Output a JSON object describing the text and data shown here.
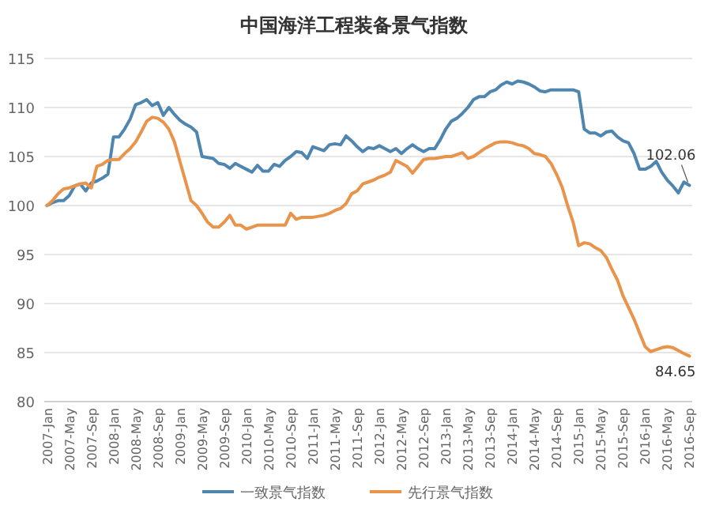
{
  "chart_data": {
    "type": "line",
    "title": "中国海洋工程装备景气指数",
    "categories": [
      "2007-Jan",
      null,
      null,
      null,
      "2007-May",
      null,
      null,
      null,
      "2007-Sep",
      null,
      null,
      null,
      "2008-Jan",
      null,
      null,
      null,
      "2008-May",
      null,
      null,
      null,
      "2008-Sep",
      null,
      null,
      null,
      "2009-Jan",
      null,
      null,
      null,
      "2009-May",
      null,
      null,
      null,
      "2009-Sep",
      null,
      null,
      null,
      "2010-Jan",
      null,
      null,
      null,
      "2010-May",
      null,
      null,
      null,
      "2010-Sep",
      null,
      null,
      null,
      "2011-Jan",
      null,
      null,
      null,
      "2011-May",
      null,
      null,
      null,
      "2011-Sep",
      null,
      null,
      null,
      "2012-Jan",
      null,
      null,
      null,
      "2012-May",
      null,
      null,
      null,
      "2012-Sep",
      null,
      null,
      null,
      "2013-Jan",
      null,
      null,
      null,
      "2013-May",
      null,
      null,
      null,
      "2013-Sep",
      null,
      null,
      null,
      "2014-Jan",
      null,
      null,
      null,
      "2014-May",
      null,
      null,
      null,
      "2014-Sep",
      null,
      null,
      null,
      "2015-Jan",
      null,
      null,
      null,
      "2015-May",
      null,
      null,
      null,
      "2015-Sep",
      null,
      null,
      null,
      "2016-Jan",
      null,
      null,
      null,
      "2016-May",
      null,
      null,
      null,
      "2016-Sep"
    ],
    "series": [
      {
        "name": "一致景气指数",
        "color": "#4f86b0",
        "values": [
          100,
          100.3,
          100.5,
          100.5,
          101,
          102,
          102.2,
          101.5,
          102.3,
          102.5,
          102.8,
          103.2,
          107,
          107,
          107.8,
          108.8,
          110.3,
          110.5,
          110.8,
          110.2,
          110.5,
          109.2,
          110,
          109.3,
          108.7,
          108.3,
          108,
          107.5,
          105,
          104.9,
          104.8,
          104.3,
          104.2,
          103.8,
          104.3,
          104,
          103.7,
          103.4,
          104.1,
          103.5,
          103.5,
          104.2,
          104,
          104.6,
          105,
          105.5,
          105.4,
          104.8,
          106,
          105.8,
          105.6,
          106.2,
          106.3,
          106.2,
          107.1,
          106.6,
          106,
          105.5,
          105.9,
          105.8,
          106.1,
          105.8,
          105.5,
          105.8,
          105.3,
          105.8,
          106.2,
          105.8,
          105.5,
          105.8,
          105.8,
          106.7,
          107.8,
          108.6,
          108.9,
          109.4,
          110,
          110.8,
          111.1,
          111.1,
          111.6,
          111.8,
          112.3,
          112.6,
          112.4,
          112.7,
          112.6,
          112.4,
          112.1,
          111.7,
          111.6,
          111.8,
          111.8,
          111.8,
          111.8,
          111.8,
          111.6,
          107.8,
          107.4,
          107.4,
          107.1,
          107.5,
          107.6,
          107,
          106.6,
          106.4,
          105.3,
          103.7,
          103.7,
          104,
          104.5,
          103.4,
          102.6,
          102,
          101.3,
          102.4,
          102.06
        ],
        "value_labels": [
          null,
          null,
          null,
          null,
          null,
          null,
          null,
          null,
          null,
          null,
          null,
          null,
          null,
          null,
          null,
          null,
          null,
          null,
          null,
          null,
          null,
          null,
          null,
          null,
          null,
          null,
          null,
          null,
          null,
          null,
          null,
          null,
          null,
          null,
          null,
          null,
          null,
          null,
          null,
          null,
          null,
          null,
          null,
          null,
          null,
          null,
          null,
          null,
          null,
          null,
          null,
          null,
          null,
          null,
          null,
          null,
          null,
          null,
          null,
          null,
          null,
          null,
          null,
          null,
          null,
          null,
          null,
          null,
          null,
          null,
          null,
          null,
          null,
          null,
          null,
          null,
          null,
          null,
          null,
          null,
          null,
          null,
          null,
          null,
          null,
          null,
          null,
          null,
          null,
          null,
          null,
          null,
          null,
          null,
          null,
          null,
          null,
          null,
          null,
          null,
          null,
          null,
          null,
          null,
          null,
          null,
          null,
          null,
          null,
          null,
          null,
          null,
          null,
          null,
          null,
          null,
          "102.06"
        ]
      },
      {
        "name": "先行景气指数",
        "color": "#e8944a",
        "values": [
          100,
          100.5,
          101.2,
          101.7,
          101.8,
          102,
          102.2,
          102.3,
          101.8,
          104,
          104.2,
          104.6,
          104.7,
          104.7,
          105.3,
          105.8,
          106.5,
          107.5,
          108.6,
          109,
          108.9,
          108.5,
          107.8,
          106.5,
          104.5,
          102.5,
          100.5,
          100,
          99.2,
          98.3,
          97.8,
          97.8,
          98.3,
          99,
          98,
          98,
          97.6,
          97.8,
          98,
          98,
          98,
          98,
          98,
          98,
          99.2,
          98.6,
          98.8,
          98.8,
          98.8,
          98.9,
          99,
          99.2,
          99.5,
          99.7,
          100.2,
          101.2,
          101.5,
          102.2,
          102.4,
          102.6,
          102.9,
          103.1,
          103.4,
          104.6,
          104.3,
          104,
          103.3,
          104,
          104.7,
          104.8,
          104.8,
          104.9,
          105,
          105,
          105.2,
          105.4,
          104.8,
          105,
          105.4,
          105.8,
          106.1,
          106.4,
          106.5,
          106.5,
          106.4,
          106.2,
          106.1,
          105.8,
          105.3,
          105.2,
          105,
          104.3,
          103.2,
          101.9,
          100,
          98.3,
          95.9,
          96.2,
          96.1,
          95.7,
          95.4,
          94.7,
          93.5,
          92.4,
          90.8,
          89.6,
          88.4,
          87,
          85.6,
          85.1,
          85.3,
          85.5,
          85.6,
          85.5,
          85.2,
          84.9,
          84.65
        ],
        "value_labels": [
          null,
          null,
          null,
          null,
          null,
          null,
          null,
          null,
          null,
          null,
          null,
          null,
          null,
          null,
          null,
          null,
          null,
          null,
          null,
          null,
          null,
          null,
          null,
          null,
          null,
          null,
          null,
          null,
          null,
          null,
          null,
          null,
          null,
          null,
          null,
          null,
          null,
          null,
          null,
          null,
          null,
          null,
          null,
          null,
          null,
          null,
          null,
          null,
          null,
          null,
          null,
          null,
          null,
          null,
          null,
          null,
          null,
          null,
          null,
          null,
          null,
          null,
          null,
          null,
          null,
          null,
          null,
          null,
          null,
          null,
          null,
          null,
          null,
          null,
          null,
          null,
          null,
          null,
          null,
          null,
          null,
          null,
          null,
          null,
          null,
          null,
          null,
          null,
          null,
          null,
          null,
          null,
          null,
          null,
          null,
          null,
          null,
          null,
          null,
          null,
          null,
          null,
          null,
          null,
          null,
          null,
          null,
          null,
          null,
          null,
          null,
          null,
          null,
          null,
          null,
          null,
          "84.65"
        ]
      }
    ],
    "ylim": [
      80,
      115
    ],
    "yticks": [
      80,
      85,
      90,
      95,
      100,
      105,
      110,
      115
    ],
    "grid": "y",
    "legend": "bottom",
    "marker": "none",
    "line_style": "solid"
  }
}
